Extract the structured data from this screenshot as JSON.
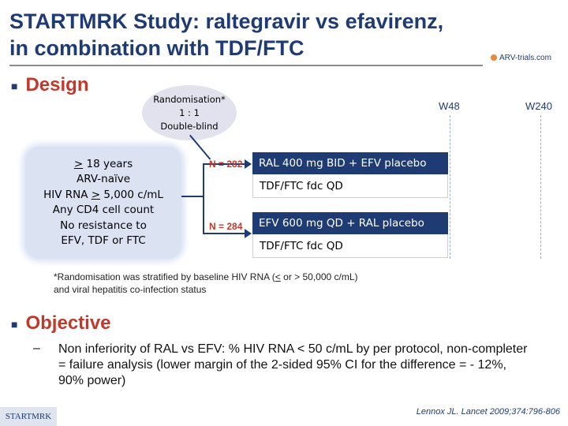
{
  "title": {
    "line1": "STARTMRK Study: raltegravir vs efavirenz,",
    "line2": "in combination with TDF/FTC"
  },
  "logo": {
    "text": "ARV-trials.com"
  },
  "design": {
    "heading": "Design",
    "randomisation": {
      "line1": "Randomisation*",
      "line2": "1 : 1",
      "line3": "Double-blind"
    },
    "criteria": [
      {
        "pre": "",
        "ul": ">",
        "post": " 18 years"
      },
      {
        "pre": "ARV-naïve",
        "ul": "",
        "post": ""
      },
      {
        "pre": "HIV RNA ",
        "ul": ">",
        "post": " 5,000 c/mL"
      },
      {
        "pre": "Any CD4 cell count",
        "ul": "",
        "post": ""
      },
      {
        "pre": "No resistance to",
        "ul": "",
        "post": ""
      },
      {
        "pre": "EFV, TDF or FTC",
        "ul": "",
        "post": ""
      }
    ],
    "weeks": {
      "w48": "W48",
      "w240": "W240"
    },
    "arms": [
      {
        "n": "N = 282",
        "drug": "RAL 400 mg BID + EFV placebo",
        "backbone": "TDF/FTC fdc QD"
      },
      {
        "n": "N = 284",
        "drug": "EFV 600 mg QD + RAL placebo",
        "backbone": "TDF/FTC fdc QD"
      }
    ],
    "footnote": {
      "pre": "*Randomisation was stratified by baseline HIV RNA (",
      "ul": "<",
      "post": " or > 50,000 c/mL)",
      "line2": "and viral hepatitis co-infection status"
    }
  },
  "objective": {
    "heading": "Objective",
    "dash": "–",
    "text": "Non inferiority of RAL vs EFV: % HIV RNA < 50 c/mL by per protocol, non-completer = failure analysis (lower margin of the 2-sided 95% CI for the difference =  - 12%, 90% power)"
  },
  "footer": {
    "study": "STARTMRK",
    "reference": "Lennox JL. Lancet 2009;374:796-806"
  },
  "colors": {
    "navy": "#1f3b73",
    "red": "#c0392b",
    "lavender": "#e2e2ee",
    "lightblue": "#dbe3f3"
  }
}
